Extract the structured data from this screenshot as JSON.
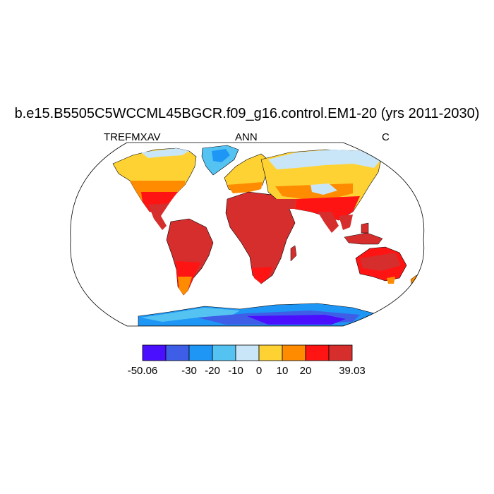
{
  "title": "b.e15.B5505C5WCCML45BGCR.f09_g16.control.EM1-20 (yrs 2011-2030)",
  "subtitle_left": "TREFMXAV",
  "subtitle_center": "ANN",
  "subtitle_right": "C",
  "colorbar": {
    "colors": [
      "#4b0fff",
      "#3f5ee8",
      "#1e96f5",
      "#55c3f2",
      "#c8e6f7",
      "#ffd234",
      "#ff8c00",
      "#ff1414",
      "#d62d2d"
    ],
    "bounds": [
      -50.06,
      -40,
      -30,
      -20,
      -10,
      0,
      10,
      20,
      30,
      39.03
    ],
    "labels": [
      "-50.06",
      "-30",
      "-20",
      "-10",
      "0",
      "10",
      "20",
      "39.03"
    ]
  },
  "map": {
    "projection": "robinson",
    "variable": "TREFMXAV",
    "season": "ANN",
    "units": "C"
  }
}
